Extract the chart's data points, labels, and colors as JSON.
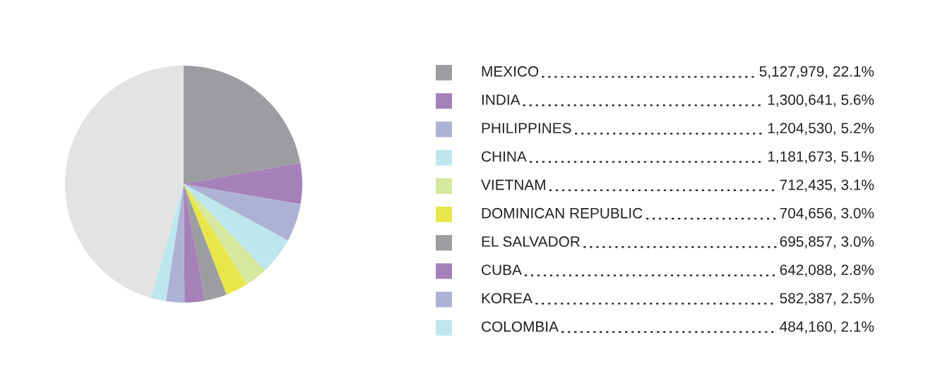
{
  "chart_data": {
    "type": "pie",
    "categories": [
      "MEXICO",
      "INDIA",
      "PHILIPPINES",
      "CHINA",
      "VIETNAM",
      "DOMINICAN REPUBLIC",
      "EL SALVADOR",
      "CUBA",
      "KOREA",
      "COLOMBIA",
      null
    ],
    "values": [
      5127979,
      1300641,
      1204530,
      1181673,
      712435,
      704656,
      695857,
      642088,
      582387,
      484160,
      10560000
    ],
    "value_labels": [
      "5,127,979, 22.1%",
      "1,300,641, 5.6%",
      "1,204,530, 5.2%",
      "1,181,673, 5.1%",
      "712,435, 3.1%",
      "704,656, 3.0%",
      "695,857, 3.0%",
      "642,088, 2.8%",
      "582,387, 2.5%",
      "484,160, 2.1%",
      null
    ],
    "colors": [
      "#9c9da0",
      "#a580b9",
      "#adb2d4",
      "#bde6ed",
      "#d6e89d",
      "#e9e64b",
      "#9c9da0",
      "#a580b9",
      "#adb2d4",
      "#bde6ed",
      "#e1e4e3"
    ],
    "legend": "right"
  }
}
